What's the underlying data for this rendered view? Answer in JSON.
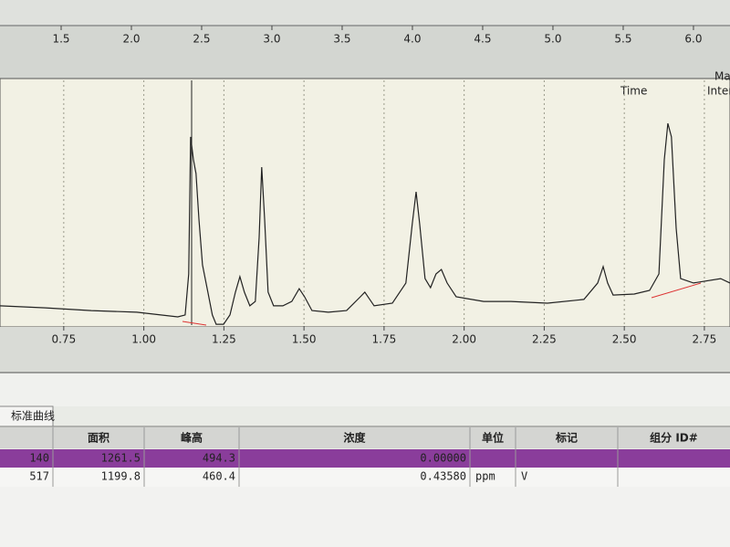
{
  "top_axis": {
    "xlim": [
      1.065,
      6.26
    ],
    "xticks": [
      1.5,
      {
        "value": 2,
        "label": "2.0"
      },
      2.5,
      {
        "value": 3,
        "label": "3.0"
      },
      3.5,
      {
        "value": 4,
        "label": "4.0"
      },
      4.5,
      {
        "value": 5,
        "label": "5.0"
      },
      5.5,
      {
        "value": 6,
        "label": "6.0"
      }
    ]
  },
  "labels": {
    "ma": "Ma",
    "time": "Time",
    "inter": "Inter"
  },
  "chart_data": {
    "type": "line",
    "color": "#222222",
    "xlim": [
      0.551,
      2.83
    ],
    "ylim": [
      0,
      100
    ],
    "grid": true,
    "xticks": [
      0.75,
      {
        "value": 1,
        "label": "1.00"
      },
      1.25,
      {
        "value": 1.5,
        "label": "1.50"
      },
      1.75,
      {
        "value": 2,
        "label": "2.00"
      },
      2.25,
      {
        "value": 2.5,
        "label": "2.50"
      },
      2.75
    ],
    "x": [
      0.551,
      0.693,
      0.836,
      0.978,
      1.106,
      1.129,
      1.14,
      1.146,
      1.155,
      1.163,
      1.172,
      1.183,
      1.2,
      1.214,
      1.226,
      1.249,
      1.269,
      1.286,
      1.3,
      1.314,
      1.331,
      1.348,
      1.36,
      1.368,
      1.377,
      1.388,
      1.405,
      1.434,
      1.462,
      1.485,
      1.502,
      1.525,
      1.576,
      1.633,
      1.676,
      1.69,
      1.719,
      1.776,
      1.818,
      1.838,
      1.85,
      1.861,
      1.878,
      1.895,
      1.912,
      1.929,
      1.947,
      1.975,
      2.061,
      2.146,
      2.26,
      2.374,
      2.417,
      2.434,
      2.448,
      2.465,
      2.531,
      2.579,
      2.608,
      2.625,
      2.636,
      2.647,
      2.662,
      2.676,
      2.716,
      2.801,
      2.83
    ],
    "values": [
      8.2,
      7.4,
      6.3,
      5.6,
      3.7,
      4.5,
      21.2,
      77.0,
      67.7,
      62.1,
      43.5,
      24.9,
      13.8,
      4.5,
      0.7,
      0.7,
      4.5,
      13.8,
      20.1,
      13.8,
      8.2,
      10.0,
      36.1,
      64.7,
      43.5,
      13.8,
      8.2,
      8.2,
      10.0,
      15.2,
      11.9,
      6.3,
      5.6,
      6.3,
      11.9,
      13.8,
      8.2,
      9.3,
      17.5,
      41.6,
      54.6,
      41.6,
      19.3,
      15.6,
      21.2,
      23.0,
      17.5,
      11.9,
      10.0,
      10.0,
      9.3,
      10.8,
      17.5,
      24.2,
      17.5,
      12.6,
      13.0,
      14.5,
      21.2,
      67.7,
      82.5,
      77.0,
      39.8,
      19.3,
      17.5,
      19.3,
      17.5
    ]
  },
  "tab": "标准曲线",
  "table": {
    "header": [
      "面积",
      "峰高",
      "浓度",
      "单位",
      "标记",
      "组分 ID#"
    ],
    "rows": [
      {
        "id": "140",
        "area": "1261.5",
        "height": "494.3",
        "conc": "0.00000"
      },
      {
        "id": "517",
        "area": "1199.8",
        "height": "460.4",
        "conc": "0.43580",
        "unit": "ppm",
        "mark": "V"
      }
    ]
  }
}
